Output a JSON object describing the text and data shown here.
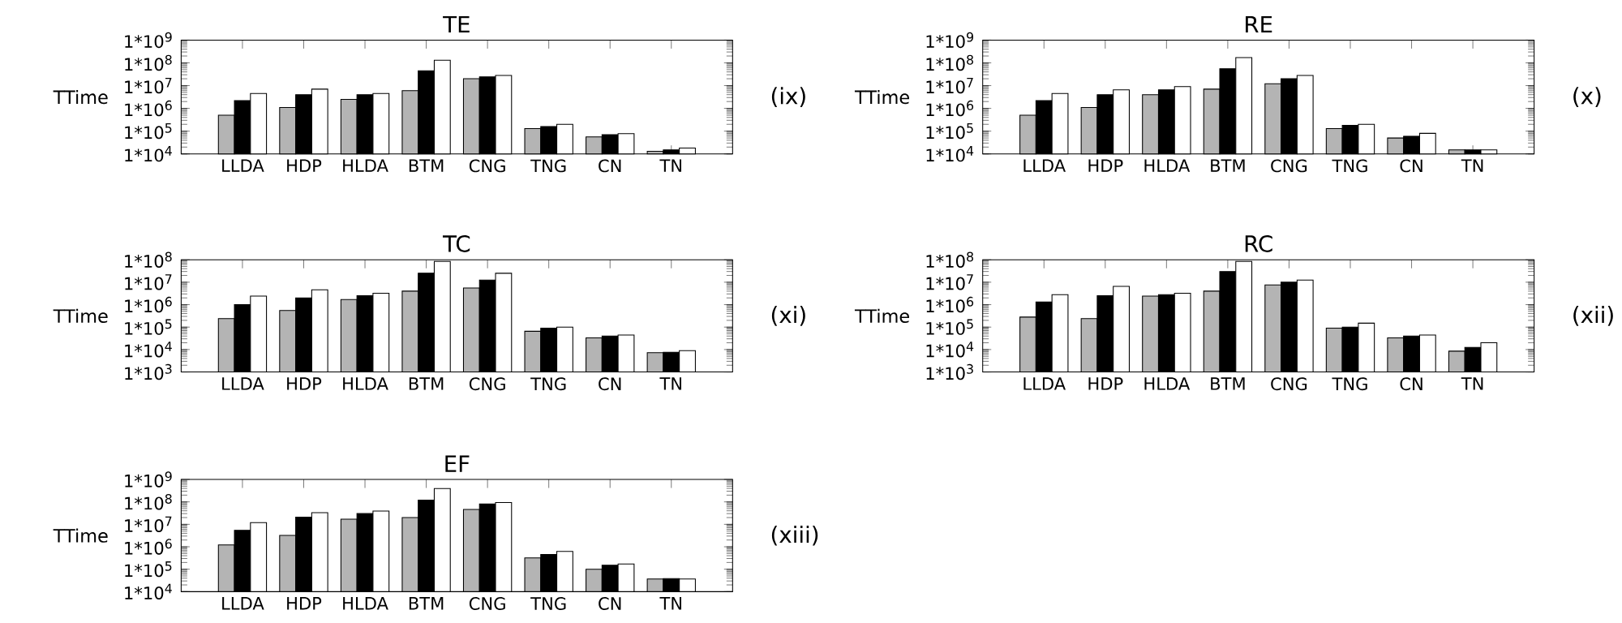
{
  "chart_data": [
    {
      "type": "bar",
      "title": "TE",
      "ylabel": "TTime",
      "log": true,
      "categories": [
        "LLDA",
        "HDP",
        "HLDA",
        "BTM",
        "CNG",
        "TNG",
        "CN",
        "TN"
      ],
      "ylim": [
        10000,
        1000000000
      ],
      "yticks": [
        {
          "value": 10000,
          "label": "1*10$^{4}$"
        },
        {
          "value": 100000,
          "label": "1*10$^{5}$"
        },
        {
          "value": 1000000,
          "label": "1*10$^{6}$"
        },
        {
          "value": 10000000,
          "label": "1*10$^{7}$"
        },
        {
          "value": 100000000,
          "label": "1*10$^{8}$"
        },
        {
          "value": 1000000000,
          "label": "1*10$^{9}$"
        }
      ],
      "series": [
        {
          "color": "#b4b4b4",
          "values": [
            500000,
            1100000,
            2500000,
            6000000,
            20000000,
            130000,
            56000,
            13000
          ]
        },
        {
          "color": "#000000",
          "values": [
            2200000,
            4000000,
            4000000,
            45000000,
            24000000,
            160000,
            70000,
            15000
          ]
        },
        {
          "color": "#ffffff",
          "values": [
            4500000,
            7000000,
            4500000,
            130000000,
            28000000,
            200000,
            78000,
            18000
          ]
        }
      ],
      "annotations": [
        "(ix)"
      ]
    },
    {
      "type": "bar",
      "title": "RE",
      "ylabel": "TTime",
      "log": true,
      "categories": [
        "LLDA",
        "HDP",
        "HLDA",
        "BTM",
        "CNG",
        "TNG",
        "CN",
        "TN"
      ],
      "ylim": [
        10000,
        1000000000
      ],
      "yticks": [
        {
          "value": 10000,
          "label": "1*10$^{4}$"
        },
        {
          "value": 100000,
          "label": "1*10$^{5}$"
        },
        {
          "value": 1000000,
          "label": "1*10$^{6}$"
        },
        {
          "value": 10000000,
          "label": "1*10$^{7}$"
        },
        {
          "value": 100000000,
          "label": "1*10$^{8}$"
        },
        {
          "value": 1000000000,
          "label": "1*10$^{9}$"
        }
      ],
      "series": [
        {
          "color": "#b4b4b4",
          "values": [
            500000,
            1100000,
            4000000,
            7000000,
            12000000,
            130000,
            50000,
            15000
          ]
        },
        {
          "color": "#000000",
          "values": [
            2200000,
            4000000,
            6500000,
            55000000,
            20000000,
            180000,
            60000,
            15000
          ]
        },
        {
          "color": "#ffffff",
          "values": [
            4500000,
            6500000,
            9000000,
            170000000,
            28000000,
            200000,
            80000,
            15000
          ]
        }
      ],
      "annotations": [
        "(x)"
      ]
    },
    {
      "type": "bar",
      "title": "TC",
      "ylabel": "TTime",
      "log": true,
      "categories": [
        "LLDA",
        "HDP",
        "HLDA",
        "BTM",
        "CNG",
        "TNG",
        "CN",
        "TN"
      ],
      "ylim": [
        1000,
        100000000
      ],
      "yticks": [
        {
          "value": 1000,
          "label": "1*10$^{3}$"
        },
        {
          "value": 10000,
          "label": "1*10$^{4}$"
        },
        {
          "value": 100000,
          "label": "1*10$^{5}$"
        },
        {
          "value": 1000000,
          "label": "1*10$^{6}$"
        },
        {
          "value": 10000000,
          "label": "1*10$^{7}$"
        },
        {
          "value": 100000000,
          "label": "1*10$^{8}$"
        }
      ],
      "series": [
        {
          "color": "#b4b4b4",
          "values": [
            240000,
            550000,
            1700000,
            4000000,
            5500000,
            65000,
            33000,
            7200
          ]
        },
        {
          "color": "#000000",
          "values": [
            1000000,
            2000000,
            2500000,
            25000000,
            12500000,
            90000,
            40000,
            7600
          ]
        },
        {
          "color": "#ffffff",
          "values": [
            2400000,
            4600000,
            3200000,
            85000000,
            25000000,
            100000,
            44000,
            9000
          ]
        }
      ],
      "annotations": [
        "(xi)"
      ]
    },
    {
      "type": "bar",
      "title": "RC",
      "ylabel": "TTime",
      "log": true,
      "categories": [
        "LLDA",
        "HDP",
        "HLDA",
        "BTM",
        "CNG",
        "TNG",
        "CN",
        "TN"
      ],
      "ylim": [
        1000,
        100000000
      ],
      "yticks": [
        {
          "value": 1000,
          "label": "1*10$^{3}$"
        },
        {
          "value": 10000,
          "label": "1*10$^{4}$"
        },
        {
          "value": 100000,
          "label": "1*10$^{5}$"
        },
        {
          "value": 1000000,
          "label": "1*10$^{6}$"
        },
        {
          "value": 10000000,
          "label": "1*10$^{7}$"
        },
        {
          "value": 100000000,
          "label": "1*10$^{8}$"
        }
      ],
      "series": [
        {
          "color": "#b4b4b4",
          "values": [
            280000,
            240000,
            2400000,
            4000000,
            7600000,
            90000,
            33000,
            8500
          ]
        },
        {
          "color": "#000000",
          "values": [
            1300000,
            2500000,
            2800000,
            30000000,
            10000000,
            100000,
            40000,
            12500
          ]
        },
        {
          "color": "#ffffff",
          "values": [
            2800000,
            6500000,
            3200000,
            85000000,
            12500000,
            150000,
            44000,
            20000
          ]
        }
      ],
      "annotations": [
        "(xii)"
      ]
    },
    {
      "type": "bar",
      "title": "EF",
      "ylabel": "TTime",
      "log": true,
      "categories": [
        "LLDA",
        "HDP",
        "HLDA",
        "BTM",
        "CNG",
        "TNG",
        "CN",
        "TN"
      ],
      "ylim": [
        10000,
        1000000000
      ],
      "yticks": [
        {
          "value": 10000,
          "label": "1*10$^{4}$"
        },
        {
          "value": 100000,
          "label": "1*10$^{5}$"
        },
        {
          "value": 1000000,
          "label": "1*10$^{6}$"
        },
        {
          "value": 10000000,
          "label": "1*10$^{7}$"
        },
        {
          "value": 100000000,
          "label": "1*10$^{8}$"
        },
        {
          "value": 1000000000,
          "label": "1*10$^{9}$"
        }
      ],
      "series": [
        {
          "color": "#b4b4b4",
          "values": [
            1200000,
            3200000,
            17000000,
            20000000,
            46000000,
            320000,
            100000,
            37000
          ]
        },
        {
          "color": "#000000",
          "values": [
            5400000,
            21000000,
            30000000,
            120000000,
            80000000,
            450000,
            150000,
            38000
          ]
        },
        {
          "color": "#ffffff",
          "values": [
            12000000,
            33000000,
            39000000,
            390000000,
            93000000,
            620000,
            170000,
            37000
          ]
        }
      ],
      "annotations": [
        "(xiii)"
      ]
    }
  ]
}
